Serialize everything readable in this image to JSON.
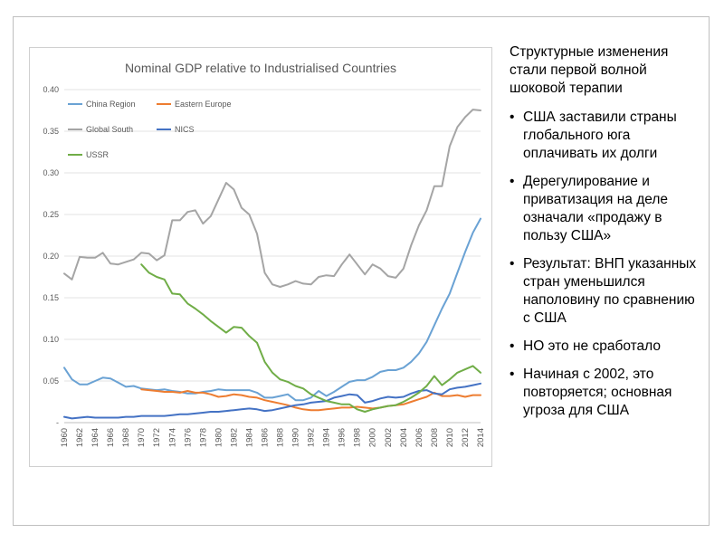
{
  "slide": {
    "intro": "Структурные изменения стали первой волной шоковой терапии",
    "bullets": [
      {
        "text": "США заставили страны глобального юга оплачивать их долги"
      },
      {
        "text": "Дерегулирование и приватизация на деле означали «продажу в пользу США»"
      },
      {
        "text": "Результат: ВНП указанных стран уменьшился наполовину по сравнению с США"
      },
      {
        "text": "НО это не сработало"
      },
      {
        "text": "Начиная с 2002, это повторяется; основная угроза для США"
      }
    ]
  },
  "chart_data": {
    "type": "line",
    "title": "Nominal GDP relative to Industrialised Countries",
    "xlabel": "",
    "ylabel": "",
    "ylim": [
      0,
      0.4
    ],
    "yticks": [
      "-",
      "0.05",
      "0.10",
      "0.15",
      "0.20",
      "0.25",
      "0.30",
      "0.35",
      "0.40"
    ],
    "xticks": [
      "1960",
      "1962",
      "1964",
      "1966",
      "1968",
      "1970",
      "1972",
      "1974",
      "1976",
      "1978",
      "1980",
      "1982",
      "1984",
      "1986",
      "1988",
      "1990",
      "1992",
      "1994",
      "1996",
      "1998",
      "2000",
      "2002",
      "2004",
      "2006",
      "2008",
      "2010",
      "2012",
      "2014"
    ],
    "grid": true,
    "legend": "top-left",
    "x": [
      1960,
      1961,
      1962,
      1963,
      1964,
      1965,
      1966,
      1967,
      1968,
      1969,
      1970,
      1971,
      1972,
      1973,
      1974,
      1975,
      1976,
      1977,
      1978,
      1979,
      1980,
      1981,
      1982,
      1983,
      1984,
      1985,
      1986,
      1987,
      1988,
      1989,
      1990,
      1991,
      1992,
      1993,
      1994,
      1995,
      1996,
      1997,
      1998,
      1999,
      2000,
      2001,
      2002,
      2003,
      2004,
      2005,
      2006,
      2007,
      2008,
      2009,
      2010,
      2011,
      2012,
      2013,
      2014
    ],
    "series": [
      {
        "name": "China Region",
        "color": "#6aa2d4",
        "values": [
          0.066,
          0.052,
          0.046,
          0.046,
          0.05,
          0.054,
          0.053,
          0.048,
          0.043,
          0.044,
          0.041,
          0.04,
          0.039,
          0.04,
          0.038,
          0.037,
          0.035,
          0.035,
          0.037,
          0.038,
          0.04,
          0.039,
          0.039,
          0.039,
          0.039,
          0.036,
          0.03,
          0.03,
          0.032,
          0.034,
          0.027,
          0.027,
          0.03,
          0.038,
          0.032,
          0.037,
          0.043,
          0.049,
          0.051,
          0.051,
          0.055,
          0.061,
          0.063,
          0.063,
          0.066,
          0.073,
          0.083,
          0.097,
          0.117,
          0.137,
          0.155,
          0.18,
          0.205,
          0.228,
          0.245
        ]
      },
      {
        "name": "Eastern Europe",
        "color": "#ed7d31",
        "values": [
          null,
          null,
          null,
          null,
          null,
          null,
          null,
          null,
          null,
          null,
          0.04,
          0.039,
          0.038,
          0.037,
          0.037,
          0.036,
          0.038,
          0.036,
          0.036,
          0.034,
          0.031,
          0.032,
          0.034,
          0.033,
          0.031,
          0.03,
          0.027,
          0.025,
          0.023,
          0.021,
          0.018,
          0.016,
          0.015,
          0.015,
          0.016,
          0.017,
          0.018,
          0.018,
          0.019,
          0.018,
          0.017,
          0.018,
          0.02,
          0.021,
          0.022,
          0.025,
          0.028,
          0.031,
          0.036,
          0.032,
          0.032,
          0.033,
          0.031,
          0.033,
          0.033
        ]
      },
      {
        "name": "Global South",
        "color": "#a5a5a5",
        "values": [
          0.179,
          0.172,
          0.199,
          0.198,
          0.198,
          0.204,
          0.191,
          0.19,
          0.193,
          0.196,
          0.204,
          0.203,
          0.195,
          0.201,
          0.243,
          0.243,
          0.253,
          0.255,
          0.239,
          0.248,
          0.268,
          0.288,
          0.28,
          0.258,
          0.25,
          0.227,
          0.18,
          0.166,
          0.163,
          0.166,
          0.17,
          0.167,
          0.166,
          0.175,
          0.177,
          0.176,
          0.19,
          0.202,
          0.19,
          0.178,
          0.19,
          0.185,
          0.176,
          0.174,
          0.185,
          0.213,
          0.237,
          0.255,
          0.284,
          0.284,
          0.332,
          0.355,
          0.367,
          0.376,
          0.375
        ]
      },
      {
        "name": "NICS",
        "color": "#4472c4",
        "values": [
          0.007,
          0.005,
          0.006,
          0.007,
          0.006,
          0.006,
          0.006,
          0.006,
          0.007,
          0.007,
          0.008,
          0.008,
          0.008,
          0.008,
          0.009,
          0.01,
          0.01,
          0.011,
          0.012,
          0.013,
          0.013,
          0.014,
          0.015,
          0.016,
          0.017,
          0.016,
          0.014,
          0.015,
          0.017,
          0.019,
          0.021,
          0.022,
          0.024,
          0.025,
          0.026,
          0.03,
          0.032,
          0.034,
          0.033,
          0.024,
          0.026,
          0.029,
          0.031,
          0.03,
          0.031,
          0.035,
          0.038,
          0.039,
          0.035,
          0.034,
          0.04,
          0.042,
          0.043,
          0.045,
          0.047
        ]
      },
      {
        "name": "USSR",
        "color": "#70ad47",
        "values": [
          null,
          null,
          null,
          null,
          null,
          null,
          null,
          null,
          null,
          null,
          0.19,
          0.18,
          0.175,
          0.172,
          0.155,
          0.154,
          0.143,
          0.137,
          0.13,
          0.122,
          0.115,
          0.108,
          0.115,
          0.114,
          0.104,
          0.096,
          0.073,
          0.06,
          0.052,
          0.049,
          0.044,
          0.041,
          0.034,
          0.03,
          0.026,
          0.024,
          0.022,
          0.022,
          0.016,
          0.013,
          0.016,
          0.018,
          0.02,
          0.021,
          0.025,
          0.03,
          0.036,
          0.044,
          0.056,
          0.045,
          0.052,
          0.06,
          0.064,
          0.068,
          0.06
        ]
      }
    ]
  }
}
